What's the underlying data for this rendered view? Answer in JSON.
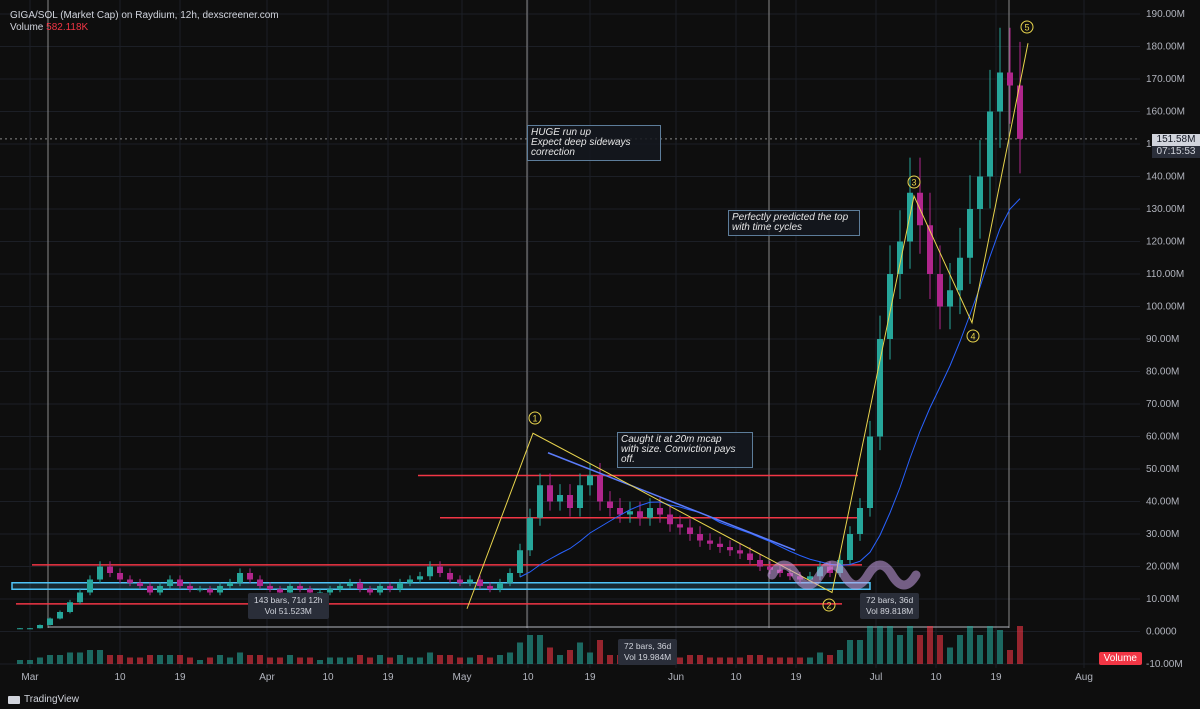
{
  "header": {
    "title": "GIGA/SOL (Market Cap) on Raydium, 12h, dexscreener.com",
    "volume_label": "Volume",
    "volume_value": "582.118K"
  },
  "annotations": {
    "run_up": "HUGE run up\nExpect deep sideways\ncorrection",
    "top": "Perfectly predicted the top\nwith time cycles",
    "caught": "Caught it at 20m mcap\nwith size. Conviction pays\noff."
  },
  "measures": {
    "m1_bars": "143 bars, 71d 12h",
    "m1_vol": "Vol 51.523M",
    "m2_bars": "72 bars, 36d",
    "m2_vol": "Vol 19.984M",
    "m3_bars": "72 bars, 36d",
    "m3_vol": "Vol 89.818M"
  },
  "price_tag": {
    "value": "151.58M",
    "timer": "07:15:53"
  },
  "volume_badge": "Volume",
  "footer": {
    "brand": "TradingView"
  },
  "colors": {
    "up": "#26a69a",
    "down": "#b0268c",
    "support": "#f23645",
    "zone": "#4fc3f7",
    "wave": "#e8d44d",
    "ma": "#2962ff"
  },
  "chart_data": {
    "type": "candlestick",
    "y_axis": {
      "ticks": [
        "190.00M",
        "180.00M",
        "170.00M",
        "160.00M",
        "150.00M",
        "140.00M",
        "130.00M",
        "120.00M",
        "110.00M",
        "100.00M",
        "90.00M",
        "80.00M",
        "70.00M",
        "60.00M",
        "50.00M",
        "40.00M",
        "30.00M",
        "20.00M",
        "10.00M",
        "0.0000",
        "-10.00M"
      ],
      "range_millions": [
        -10,
        190
      ]
    },
    "x_axis": {
      "ticks": [
        "Mar",
        "10",
        "19",
        "Apr",
        "10",
        "19",
        "May",
        "10",
        "19",
        "Jun",
        "10",
        "19",
        "Jul",
        "10",
        "19",
        "Aug"
      ]
    },
    "horizontal_levels_millions": [
      48,
      35,
      20.5,
      8.5
    ],
    "zone_millions": [
      13,
      15
    ],
    "wave_labels": [
      "1",
      "2",
      "3",
      "4",
      "5"
    ],
    "wave_points_millions": [
      7,
      61,
      12,
      134,
      95,
      181
    ],
    "market_cap_millions": [
      1,
      1,
      1,
      2,
      4,
      6,
      9,
      12,
      16,
      20,
      18,
      16,
      15,
      14,
      12,
      14,
      16,
      14,
      13,
      13,
      12,
      14,
      15,
      18,
      16,
      14,
      13,
      12,
      14,
      13,
      12,
      12,
      13,
      14,
      15,
      13,
      12,
      14,
      13,
      15,
      16,
      17,
      20,
      18,
      16,
      15,
      16,
      14,
      13,
      15,
      18,
      25,
      35,
      45,
      40,
      42,
      38,
      45,
      48,
      40,
      38,
      36,
      37,
      35,
      38,
      36,
      33,
      32,
      30,
      28,
      27,
      26,
      25,
      24,
      22,
      20,
      19,
      18,
      17,
      16,
      17,
      20,
      18,
      22,
      30,
      38,
      60,
      90,
      110,
      120,
      135,
      125,
      110,
      100,
      105,
      115,
      130,
      140,
      160,
      172,
      168,
      151.58
    ]
  }
}
